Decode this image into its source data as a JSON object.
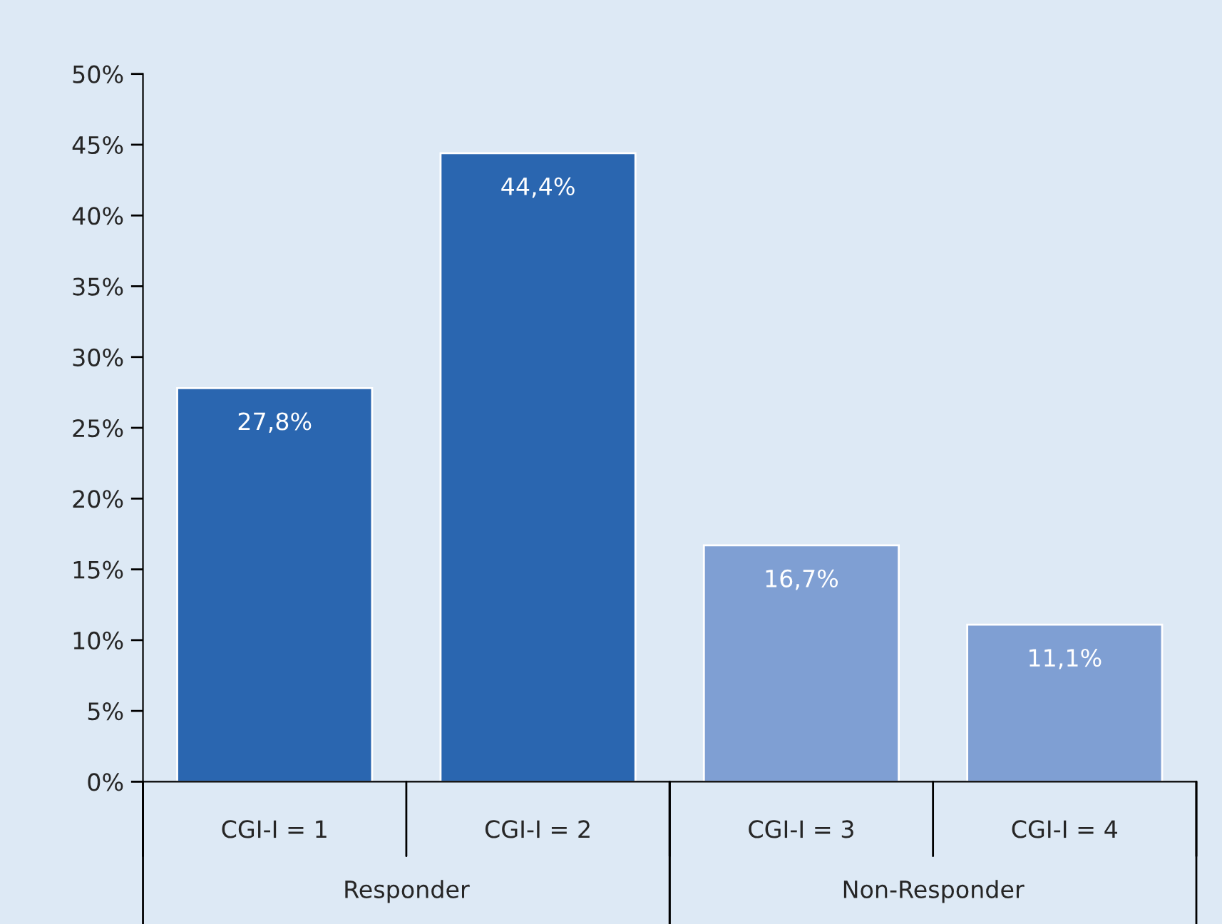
{
  "chart_data": {
    "type": "bar",
    "categories": [
      "CGI-I = 1",
      "CGI-I = 2",
      "CGI-I = 3",
      "CGI-I = 4"
    ],
    "values": [
      27.8,
      44.4,
      16.7,
      11.1
    ],
    "colors": [
      "#2a66b0",
      "#2a66b0",
      "#7f9fd3",
      "#7f9fd3"
    ],
    "value_labels": [
      "27,8%",
      "44,4%",
      "16,7%",
      "11,1%"
    ],
    "ylim": [
      0,
      50
    ],
    "yticks": [
      {
        "value": 0,
        "label": "0%"
      },
      {
        "value": 5,
        "label": "5%"
      },
      {
        "value": 10,
        "label": "10%"
      },
      {
        "value": 15,
        "label": "15%"
      },
      {
        "value": 20,
        "label": "20%"
      },
      {
        "value": 25,
        "label": "25%"
      },
      {
        "value": 30,
        "label": "30%"
      },
      {
        "value": 35,
        "label": "35%"
      },
      {
        "value": 40,
        "label": "40%"
      },
      {
        "value": 45,
        "label": "45%"
      },
      {
        "value": 50,
        "label": "50%"
      }
    ],
    "annotations": [
      "Responder",
      "Non-Responder"
    ],
    "grid": false,
    "legend": false
  }
}
